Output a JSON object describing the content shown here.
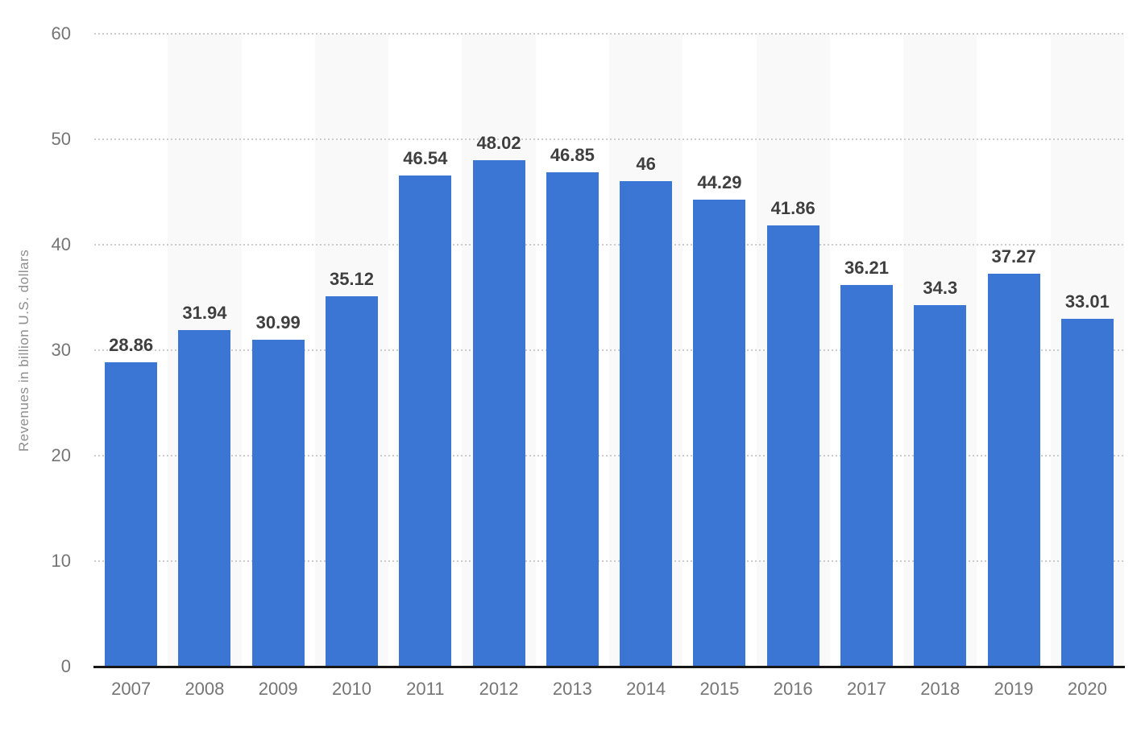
{
  "chart_data": {
    "type": "bar",
    "categories": [
      "2007",
      "2008",
      "2009",
      "2010",
      "2011",
      "2012",
      "2013",
      "2014",
      "2015",
      "2016",
      "2017",
      "2018",
      "2019",
      "2020"
    ],
    "values": [
      28.86,
      31.94,
      30.99,
      35.12,
      46.54,
      48.02,
      46.85,
      46,
      44.29,
      41.86,
      36.21,
      34.3,
      37.27,
      33.01
    ],
    "value_labels": [
      "28.86",
      "31.94",
      "30.99",
      "35.12",
      "46.54",
      "48.02",
      "46.85",
      "46",
      "44.29",
      "41.86",
      "36.21",
      "34.3",
      "37.27",
      "33.01"
    ],
    "title": "",
    "xlabel": "",
    "ylabel": "Revenues in billion U.S. dollars",
    "ylim": [
      0,
      60
    ],
    "yticks": [
      0,
      10,
      20,
      30,
      40,
      50,
      60
    ],
    "grid": "horizontal-dotted",
    "legend": "none",
    "plot_style": "alternating light column bands behind even-index years"
  },
  "colors": {
    "bar": "#3b76d4",
    "column_stripe": "#f9f9f9",
    "gridline": "#cccccc",
    "axis_line": "#161616",
    "tick_label": "#757575",
    "value_label": "#3f3f3f",
    "y_axis_title": "#8e8e8e",
    "background": "#ffffff"
  }
}
